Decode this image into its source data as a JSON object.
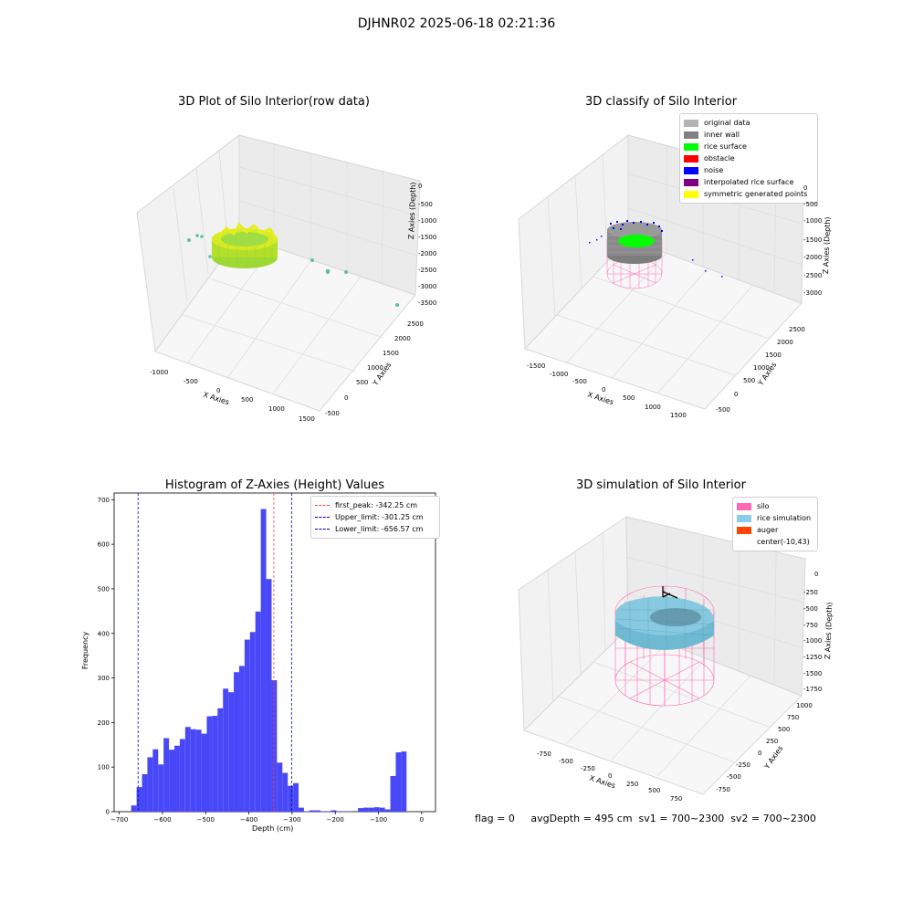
{
  "figure": {
    "title": "DJHNR02 2025-06-18 02:21:36",
    "status_line": "flag = 0     avgDepth = 495 cm  sv1 = 700~2300  sv2 = 700~2300"
  },
  "chart_data": [
    {
      "type": "scatter3d",
      "title": "3D Plot of Silo Interior(row data)",
      "xlabel": "X Axies",
      "ylabel": "Y Axies",
      "zlabel": "Z Axies (Depth)",
      "x_ticks": [
        "-1000",
        "-500",
        "0",
        "500",
        "1000",
        "1500"
      ],
      "y_ticks": [
        "-500",
        "0",
        "500",
        "1000",
        "1500",
        "2000",
        "2500"
      ],
      "z_ticks": [
        "0",
        "-500",
        "-1000",
        "-1500",
        "-2000",
        "-2500",
        "-3000",
        "-3500"
      ],
      "colors": {
        "surface": "#a8e02a",
        "scatter": "#5fbf9f"
      }
    },
    {
      "type": "scatter3d",
      "title": "3D classify of Silo Interior",
      "xlabel": "X Axies",
      "ylabel": "Y Axies",
      "zlabel": "Z Axies (Depth)",
      "x_ticks": [
        "-1500",
        "-1000",
        "-500",
        "0",
        "500",
        "1000",
        "1500"
      ],
      "y_ticks": [
        "-500",
        "0",
        "500",
        "1000",
        "1500",
        "2000",
        "2500"
      ],
      "z_ticks": [
        "0",
        "-500",
        "-1000",
        "-1500",
        "-2000",
        "-2500",
        "-3000"
      ],
      "legend": [
        {
          "label": "original data",
          "color": "#b3b3b3"
        },
        {
          "label": "inner wall",
          "color": "#808080"
        },
        {
          "label": "rice surface",
          "color": "#00ff00"
        },
        {
          "label": "obstacle",
          "color": "#ff0000"
        },
        {
          "label": "noise",
          "color": "#0000ff"
        },
        {
          "label": "interpolated rice surface",
          "color": "#800080"
        },
        {
          "label": "symmetric generated points",
          "color": "#ffff00"
        }
      ]
    },
    {
      "type": "histogram",
      "title": "Histogram of Z-Axies (Height) Values",
      "xlabel": "Depth (cm)",
      "ylabel": "Frequency",
      "xlim": [
        -712,
        32
      ],
      "ylim": [
        0,
        715
      ],
      "x_ticks": [
        -700,
        -600,
        -500,
        -400,
        -300,
        -200,
        -100,
        0
      ],
      "y_ticks": [
        0,
        100,
        200,
        300,
        400,
        500,
        600,
        700
      ],
      "bin_width": 12.5,
      "bin_start": -672.5,
      "values": [
        14,
        55,
        84,
        122,
        140,
        106,
        165,
        139,
        148,
        163,
        190,
        185,
        184,
        175,
        214,
        215,
        232,
        276,
        268,
        313,
        327,
        386,
        403,
        449,
        679,
        522,
        295,
        110,
        87,
        58,
        64,
        9,
        1,
        3,
        3,
        1,
        1,
        3,
        1,
        1,
        1,
        0,
        8,
        9,
        9,
        10,
        9,
        5,
        80,
        133,
        135
      ],
      "bar_color": "#4848f8",
      "lines": [
        {
          "label": "first_peak: -342.25 cm",
          "x": -342.25,
          "color": "#ff4040"
        },
        {
          "label": "Upper_limit: -301.25 cm",
          "x": -301.25,
          "color": "#0000cc"
        },
        {
          "label": "Lower_limit: -656.57 cm",
          "x": -656.57,
          "color": "#0000cc"
        }
      ]
    },
    {
      "type": "surface3d",
      "title": "3D simulation of Silo Interior",
      "xlabel": "X Axies",
      "ylabel": "Y Axies",
      "zlabel": "Z Axies (Depth)",
      "x_ticks": [
        "-750",
        "-500",
        "-250",
        "0",
        "250",
        "500",
        "750"
      ],
      "y_ticks": [
        "-750",
        "-500",
        "-250",
        "0",
        "250",
        "500",
        "750",
        "1000"
      ],
      "z_ticks": [
        "0",
        "-250",
        "-500",
        "-750",
        "-1000",
        "-1250",
        "-1500",
        "-1750"
      ],
      "legend": [
        {
          "label": "silo",
          "color": "#ff69b4"
        },
        {
          "label": "rice simulation",
          "color": "#87ceeb"
        },
        {
          "label": "auger",
          "color": "#ff4500"
        },
        {
          "label": "center(-10,43)",
          "color": "#ffffff"
        }
      ]
    }
  ]
}
